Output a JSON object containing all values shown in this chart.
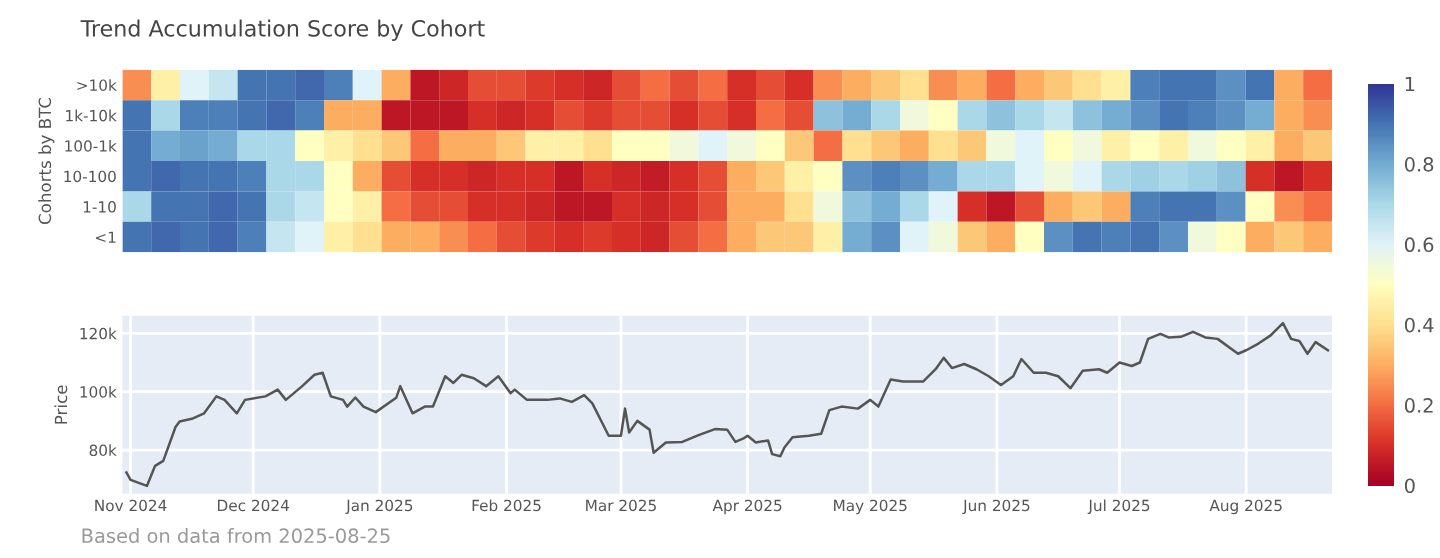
{
  "chart_data": [
    {
      "type": "heatmap",
      "title": "Trend Accumulation Score by Cohort",
      "ylabel": "Cohorts by BTC",
      "categories": [
        null,
        null,
        null,
        null,
        null,
        null,
        null,
        null,
        null,
        null,
        null,
        null,
        null,
        null,
        null,
        null,
        null,
        null,
        null,
        null,
        null,
        null,
        null,
        null,
        null,
        null,
        null,
        null,
        null,
        null,
        null,
        null,
        null,
        null,
        null,
        null,
        null,
        null,
        null,
        null,
        null,
        null
      ],
      "y_categories": [
        ">10k",
        "1k-10k",
        "100-1k",
        "10-100",
        "1-10",
        "<1"
      ],
      "cells": [
        [
          0.25,
          0.45,
          0.6,
          0.65,
          0.9,
          0.9,
          0.92,
          0.88,
          0.6,
          0.3,
          0.05,
          0.08,
          0.15,
          0.15,
          0.12,
          0.1,
          0.08,
          0.15,
          0.2,
          0.15,
          0.2,
          0.1,
          0.15,
          0.1,
          0.25,
          0.3,
          0.35,
          0.4,
          0.25,
          0.3,
          0.2,
          0.3,
          0.35,
          0.4,
          0.45,
          0.88,
          0.9,
          0.9,
          0.85,
          0.9,
          0.3,
          0.2
        ],
        [
          0.9,
          0.7,
          0.88,
          0.88,
          0.9,
          0.92,
          0.88,
          0.3,
          0.3,
          0.05,
          0.05,
          0.05,
          0.1,
          0.08,
          0.1,
          0.15,
          0.12,
          0.15,
          0.15,
          0.1,
          0.15,
          0.1,
          0.2,
          0.15,
          0.75,
          0.8,
          0.7,
          0.55,
          0.5,
          0.7,
          0.75,
          0.7,
          0.65,
          0.75,
          0.8,
          0.85,
          0.9,
          0.88,
          0.85,
          0.8,
          0.3,
          0.25
        ],
        [
          0.9,
          0.8,
          0.82,
          0.8,
          0.7,
          0.7,
          0.5,
          0.45,
          0.4,
          0.35,
          0.2,
          0.3,
          0.3,
          0.35,
          0.45,
          0.45,
          0.4,
          0.5,
          0.5,
          0.55,
          0.6,
          0.55,
          0.5,
          0.35,
          0.2,
          0.4,
          0.35,
          0.3,
          0.4,
          0.35,
          0.55,
          0.6,
          0.5,
          0.55,
          0.45,
          0.5,
          0.45,
          0.55,
          0.5,
          0.45,
          0.3,
          0.35
        ],
        [
          0.9,
          0.92,
          0.9,
          0.9,
          0.88,
          0.7,
          0.7,
          0.5,
          0.3,
          0.15,
          0.1,
          0.1,
          0.08,
          0.1,
          0.1,
          0.05,
          0.1,
          0.08,
          0.06,
          0.1,
          0.15,
          0.3,
          0.35,
          0.45,
          0.5,
          0.85,
          0.88,
          0.85,
          0.8,
          0.7,
          0.7,
          0.6,
          0.55,
          0.6,
          0.7,
          0.72,
          0.7,
          0.72,
          0.75,
          0.1,
          0.05,
          0.1
        ],
        [
          0.7,
          0.9,
          0.9,
          0.92,
          0.9,
          0.7,
          0.65,
          0.5,
          0.45,
          0.2,
          0.15,
          0.15,
          0.1,
          0.1,
          0.08,
          0.05,
          0.05,
          0.1,
          0.08,
          0.1,
          0.15,
          0.3,
          0.3,
          0.4,
          0.55,
          0.75,
          0.8,
          0.7,
          0.6,
          0.1,
          0.05,
          0.15,
          0.3,
          0.35,
          0.3,
          0.88,
          0.9,
          0.9,
          0.85,
          0.5,
          0.25,
          0.2
        ],
        [
          0.9,
          0.92,
          0.9,
          0.92,
          0.88,
          0.65,
          0.6,
          0.45,
          0.4,
          0.3,
          0.3,
          0.25,
          0.2,
          0.15,
          0.12,
          0.1,
          0.12,
          0.1,
          0.08,
          0.15,
          0.2,
          0.3,
          0.35,
          0.35,
          0.45,
          0.8,
          0.85,
          0.6,
          0.55,
          0.35,
          0.3,
          0.5,
          0.85,
          0.9,
          0.88,
          0.9,
          0.85,
          0.55,
          0.5,
          0.3,
          0.35,
          0.3
        ]
      ],
      "clim": [
        0,
        1
      ],
      "cticks": [
        0,
        0.2,
        0.4,
        0.6,
        0.8,
        1
      ],
      "tick_labels": "y"
    },
    {
      "type": "line",
      "ylabel": "Price",
      "grid": true,
      "annotations": [
        "Based on data from 2025-08-25"
      ],
      "xlim": [
        "2024-10-30",
        "2025-08-22"
      ],
      "ylim": [
        65000,
        126000
      ],
      "yticks": [
        {
          "value": 80000,
          "label": "80k"
        },
        {
          "value": 100000,
          "label": "100k"
        },
        {
          "value": 120000,
          "label": "120k"
        }
      ],
      "xticks": [
        {
          "value": "2024-11-01",
          "label": "Nov 2024"
        },
        {
          "value": "2024-12-01",
          "label": "Dec 2024"
        },
        {
          "value": "2025-01-01",
          "label": "Jan 2025"
        },
        {
          "value": "2025-02-01",
          "label": "Feb 2025"
        },
        {
          "value": "2025-03-01",
          "label": "Mar 2025"
        },
        {
          "value": "2025-04-01",
          "label": "Apr 2025"
        },
        {
          "value": "2025-05-01",
          "label": "May 2025"
        },
        {
          "value": "2025-06-01",
          "label": "Jun 2025"
        },
        {
          "value": "2025-07-01",
          "label": "Jul 2025"
        },
        {
          "value": "2025-08-01",
          "label": "Aug 2025"
        }
      ],
      "series": [
        {
          "color": "#555555",
          "x": [
            "2024-10-31",
            "2024-11-01",
            "2024-11-05",
            "2024-11-07",
            "2024-11-09",
            "2024-11-12",
            "2024-11-13",
            "2024-11-16",
            "2024-11-19",
            "2024-11-22",
            "2024-11-24",
            "2024-11-27",
            "2024-11-29",
            "2024-12-04",
            "2024-12-07",
            "2024-12-09",
            "2024-12-13",
            "2024-12-16",
            "2024-12-18",
            "2024-12-20",
            "2024-12-23",
            "2024-12-24",
            "2024-12-26",
            "2024-12-28",
            "2024-12-31",
            "2025-01-05",
            "2025-01-06",
            "2025-01-09",
            "2025-01-12",
            "2025-01-14",
            "2025-01-17",
            "2025-01-19",
            "2025-01-21",
            "2025-01-24",
            "2025-01-27",
            "2025-01-30",
            "2025-02-02",
            "2025-02-03",
            "2025-02-06",
            "2025-02-11",
            "2025-02-14",
            "2025-02-17",
            "2025-02-20",
            "2025-02-22",
            "2025-02-26",
            "2025-03-01",
            "2025-03-02",
            "2025-03-03",
            "2025-03-05",
            "2025-03-08",
            "2025-03-09",
            "2025-03-12",
            "2025-03-16",
            "2025-03-20",
            "2025-03-24",
            "2025-03-27",
            "2025-03-29",
            "2025-03-31",
            "2025-04-01",
            "2025-04-03",
            "2025-04-06",
            "2025-04-07",
            "2025-04-09",
            "2025-04-10",
            "2025-04-12",
            "2025-04-16",
            "2025-04-19",
            "2025-04-21",
            "2025-04-24",
            "2025-04-28",
            "2025-05-01",
            "2025-05-03",
            "2025-05-06",
            "2025-05-09",
            "2025-05-14",
            "2025-05-17",
            "2025-05-19",
            "2025-05-21",
            "2025-05-24",
            "2025-05-27",
            "2025-05-30",
            "2025-06-02",
            "2025-06-05",
            "2025-06-07",
            "2025-06-10",
            "2025-06-13",
            "2025-06-16",
            "2025-06-19",
            "2025-06-22",
            "2025-06-26",
            "2025-06-28",
            "2025-07-01",
            "2025-07-04",
            "2025-07-06",
            "2025-07-08",
            "2025-07-11",
            "2025-07-13",
            "2025-07-16",
            "2025-07-19",
            "2025-07-22",
            "2025-07-25",
            "2025-07-30",
            "2025-08-01",
            "2025-08-04",
            "2025-08-07",
            "2025-08-10",
            "2025-08-12",
            "2025-08-14",
            "2025-08-16",
            "2025-08-18",
            "2025-08-21"
          ],
          "values": [
            72300,
            69800,
            67700,
            74600,
            76300,
            87900,
            89800,
            90700,
            92600,
            98400,
            97200,
            92600,
            97200,
            98400,
            100700,
            97200,
            101900,
            105800,
            106500,
            98400,
            97200,
            94900,
            98000,
            94900,
            93000,
            97900,
            101900,
            92600,
            94900,
            94900,
            105300,
            103000,
            105800,
            104600,
            101900,
            105300,
            99500,
            100700,
            97200,
            97200,
            97700,
            96500,
            98800,
            96000,
            84900,
            84900,
            94200,
            86000,
            90000,
            87000,
            79100,
            82600,
            82800,
            85100,
            87200,
            87000,
            82800,
            84000,
            84900,
            82600,
            83300,
            78600,
            77900,
            80900,
            84400,
            84900,
            85600,
            93700,
            94900,
            94200,
            97200,
            94900,
            104200,
            103500,
            103500,
            107700,
            111600,
            108100,
            109500,
            107700,
            105300,
            102300,
            105300,
            111200,
            106500,
            106500,
            105300,
            101200,
            107200,
            107700,
            106500,
            110000,
            108800,
            110000,
            118100,
            119800,
            118600,
            118800,
            120500,
            118600,
            118100,
            113000,
            114200,
            116500,
            119300,
            123500,
            118100,
            117400,
            113000,
            117000,
            114200
          ]
        }
      ]
    }
  ]
}
